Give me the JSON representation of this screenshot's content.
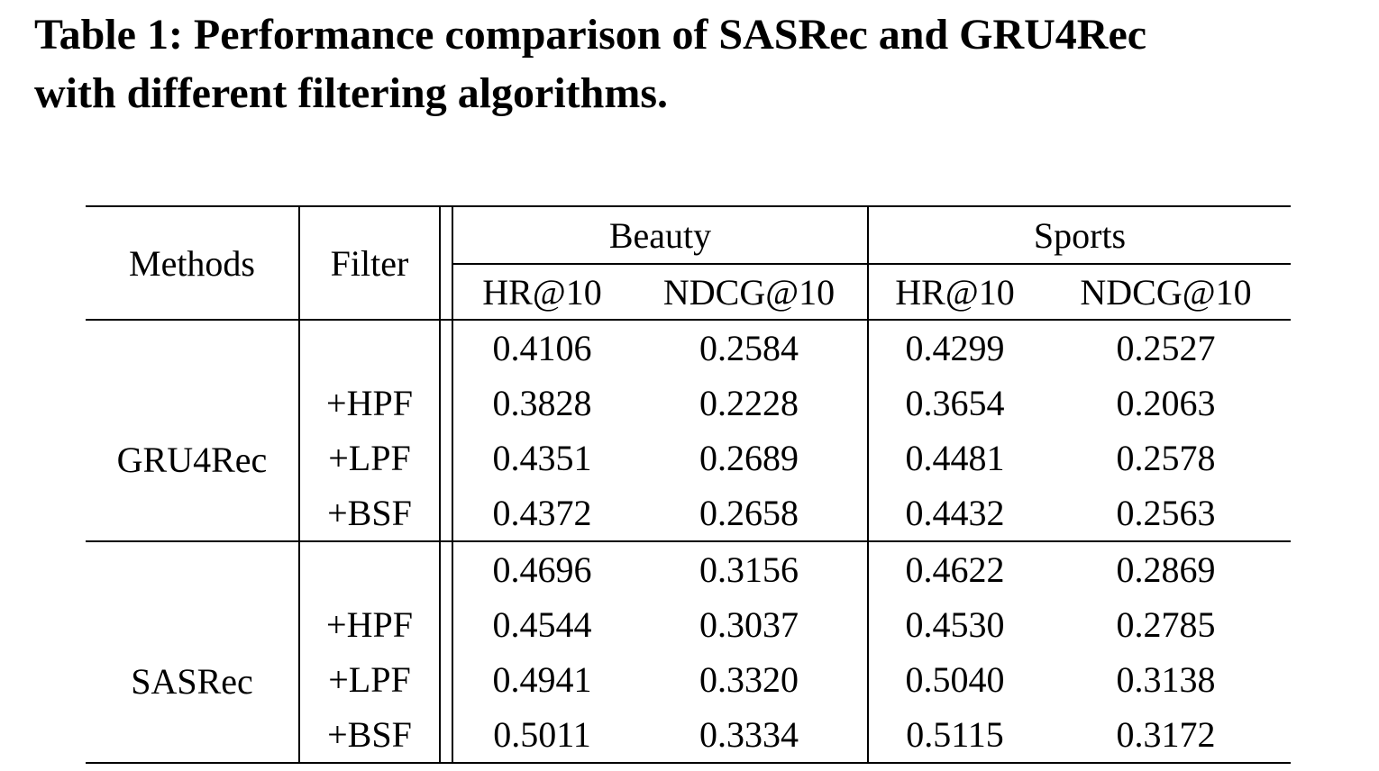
{
  "title": "Table 1: Performance comparison of SASRec and GRU4Rec\nwith different filtering algorithms.",
  "table": {
    "headers": {
      "methods": "Methods",
      "filter": "Filter",
      "group_beauty": "Beauty",
      "group_sports": "Sports",
      "beauty_hr": "HR@10",
      "beauty_ndcg": "NDCG@10",
      "sports_hr": "HR@10",
      "sports_ndcg": "NDCG@10"
    },
    "sections": [
      {
        "method": "GRU4Rec",
        "rows": [
          {
            "filter": "",
            "cells": [
              {
                "text": "0.4106",
                "bold": false
              },
              {
                "text": "0.2584",
                "bold": false
              },
              {
                "text": "0.4299",
                "bold": false
              },
              {
                "text": "0.2527",
                "bold": false
              }
            ]
          },
          {
            "filter": "+HPF",
            "cells": [
              {
                "text": "0.3828",
                "bold": false
              },
              {
                "text": "0.2228",
                "bold": false
              },
              {
                "text": "0.3654",
                "bold": false
              },
              {
                "text": "0.2063",
                "bold": false
              }
            ]
          },
          {
            "filter": "+LPF",
            "cells": [
              {
                "text": "0.4351",
                "bold": false
              },
              {
                "text": "0.2689",
                "bold": true
              },
              {
                "text": "0.4481",
                "bold": true
              },
              {
                "text": "0.2578",
                "bold": true
              }
            ]
          },
          {
            "filter": "+BSF",
            "cells": [
              {
                "text": "0.4372",
                "bold": true
              },
              {
                "text": "0.2658",
                "bold": false
              },
              {
                "text": "0.4432",
                "bold": false
              },
              {
                "text": "0.2563",
                "bold": false
              }
            ]
          }
        ]
      },
      {
        "method": "SASRec",
        "rows": [
          {
            "filter": "",
            "cells": [
              {
                "text": "0.4696",
                "bold": false
              },
              {
                "text": "0.3156",
                "bold": false
              },
              {
                "text": "0.4622",
                "bold": false
              },
              {
                "text": "0.2869",
                "bold": false
              }
            ]
          },
          {
            "filter": "+HPF",
            "cells": [
              {
                "text": "0.4544",
                "bold": false
              },
              {
                "text": "0.3037",
                "bold": false
              },
              {
                "text": "0.4530",
                "bold": false
              },
              {
                "text": "0.2785",
                "bold": false
              }
            ]
          },
          {
            "filter": "+LPF",
            "cells": [
              {
                "text": "0.4941",
                "bold": false
              },
              {
                "text": "0.3320",
                "bold": false
              },
              {
                "text": "0.5040",
                "bold": false
              },
              {
                "text": "0.3138",
                "bold": false
              }
            ]
          },
          {
            "filter": "+BSF",
            "cells": [
              {
                "text": "0.5011",
                "bold": true
              },
              {
                "text": "0.3334",
                "bold": true
              },
              {
                "text": "0.5115",
                "bold": true
              },
              {
                "text": "0.3172",
                "bold": true
              }
            ]
          }
        ]
      }
    ]
  }
}
